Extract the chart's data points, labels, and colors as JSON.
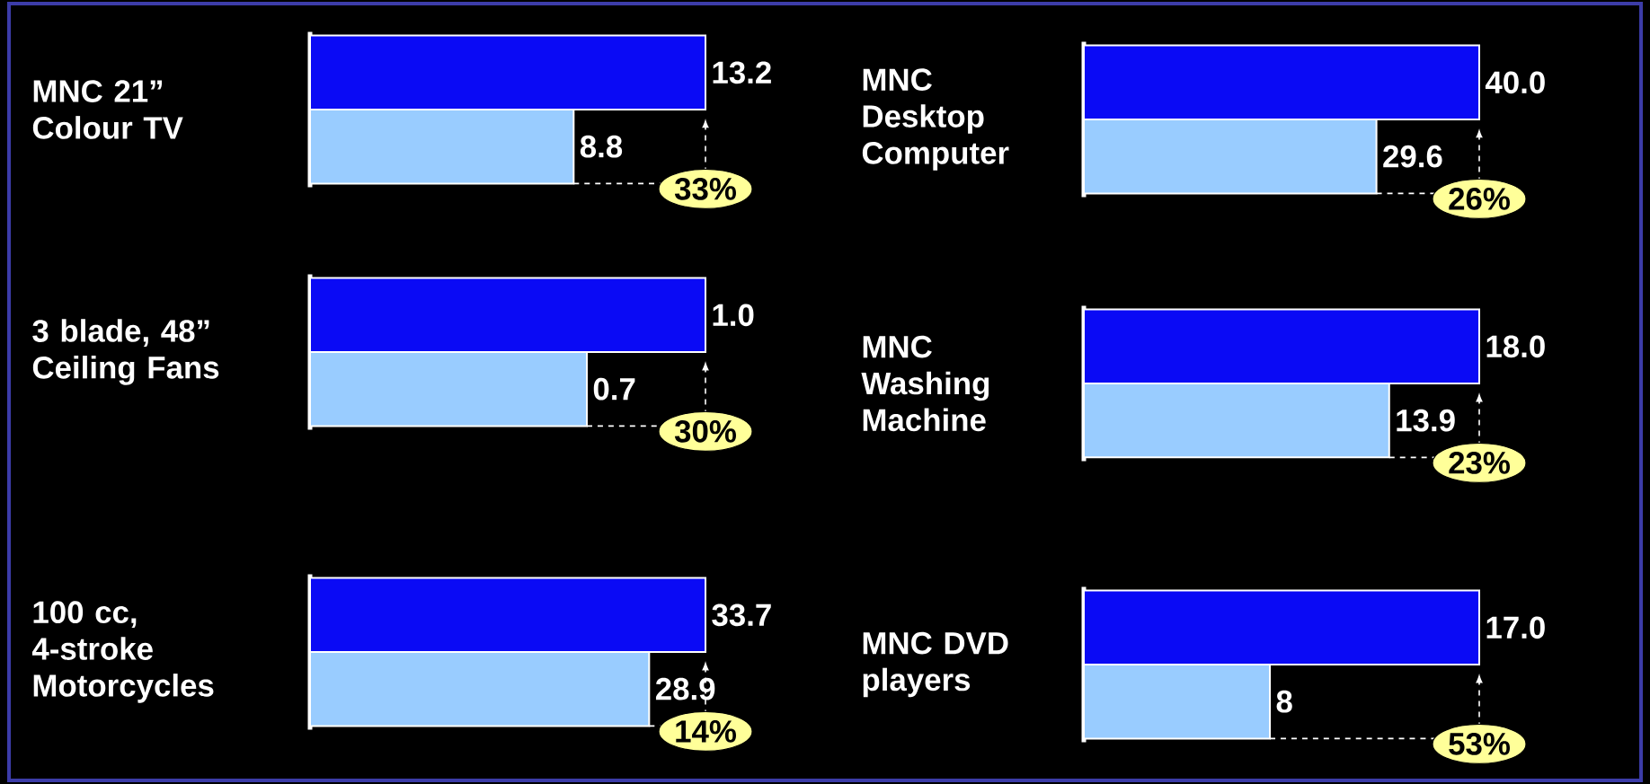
{
  "chart_data": [
    {
      "type": "bar",
      "orientation": "horizontal",
      "title": "MNC 21” Colour TV",
      "categories": [
        null,
        null
      ],
      "values": [
        13.2,
        8.8
      ],
      "value_labels": [
        "13.2",
        "8.8"
      ],
      "colors": [
        "#0a0af5",
        "#99ccff"
      ],
      "annotations": [
        "33%"
      ]
    },
    {
      "type": "bar",
      "orientation": "horizontal",
      "title": "MNC Desktop Computer",
      "categories": [
        null,
        null
      ],
      "values": [
        40.0,
        29.6
      ],
      "value_labels": [
        "40.0",
        "29.6"
      ],
      "colors": [
        "#0a0af5",
        "#99ccff"
      ],
      "annotations": [
        "26%"
      ]
    },
    {
      "type": "bar",
      "orientation": "horizontal",
      "title": "3 blade, 48” Ceiling Fans",
      "categories": [
        null,
        null
      ],
      "values": [
        1.0,
        0.7
      ],
      "value_labels": [
        "1.0",
        "0.7"
      ],
      "colors": [
        "#0a0af5",
        "#99ccff"
      ],
      "annotations": [
        "30%"
      ]
    },
    {
      "type": "bar",
      "orientation": "horizontal",
      "title": "MNC Washing Machine",
      "categories": [
        null,
        null
      ],
      "values": [
        18.0,
        13.9
      ],
      "value_labels": [
        "18.0",
        "13.9"
      ],
      "colors": [
        "#0a0af5",
        "#99ccff"
      ],
      "annotations": [
        "23%"
      ]
    },
    {
      "type": "bar",
      "orientation": "horizontal",
      "title": "100 cc, 4-stroke Motorcycles",
      "categories": [
        null,
        null
      ],
      "values": [
        33.7,
        28.9
      ],
      "value_labels": [
        "33.7",
        "28.9"
      ],
      "colors": [
        "#0a0af5",
        "#99ccff"
      ],
      "annotations": [
        "14%"
      ]
    },
    {
      "type": "bar",
      "orientation": "horizontal",
      "title": "MNC DVD players",
      "categories": [
        null,
        null
      ],
      "values": [
        17.0,
        8
      ],
      "value_labels": [
        "17.0",
        "8"
      ],
      "colors": [
        "#0a0af5",
        "#99ccff"
      ],
      "annotations": [
        "53%"
      ]
    }
  ]
}
